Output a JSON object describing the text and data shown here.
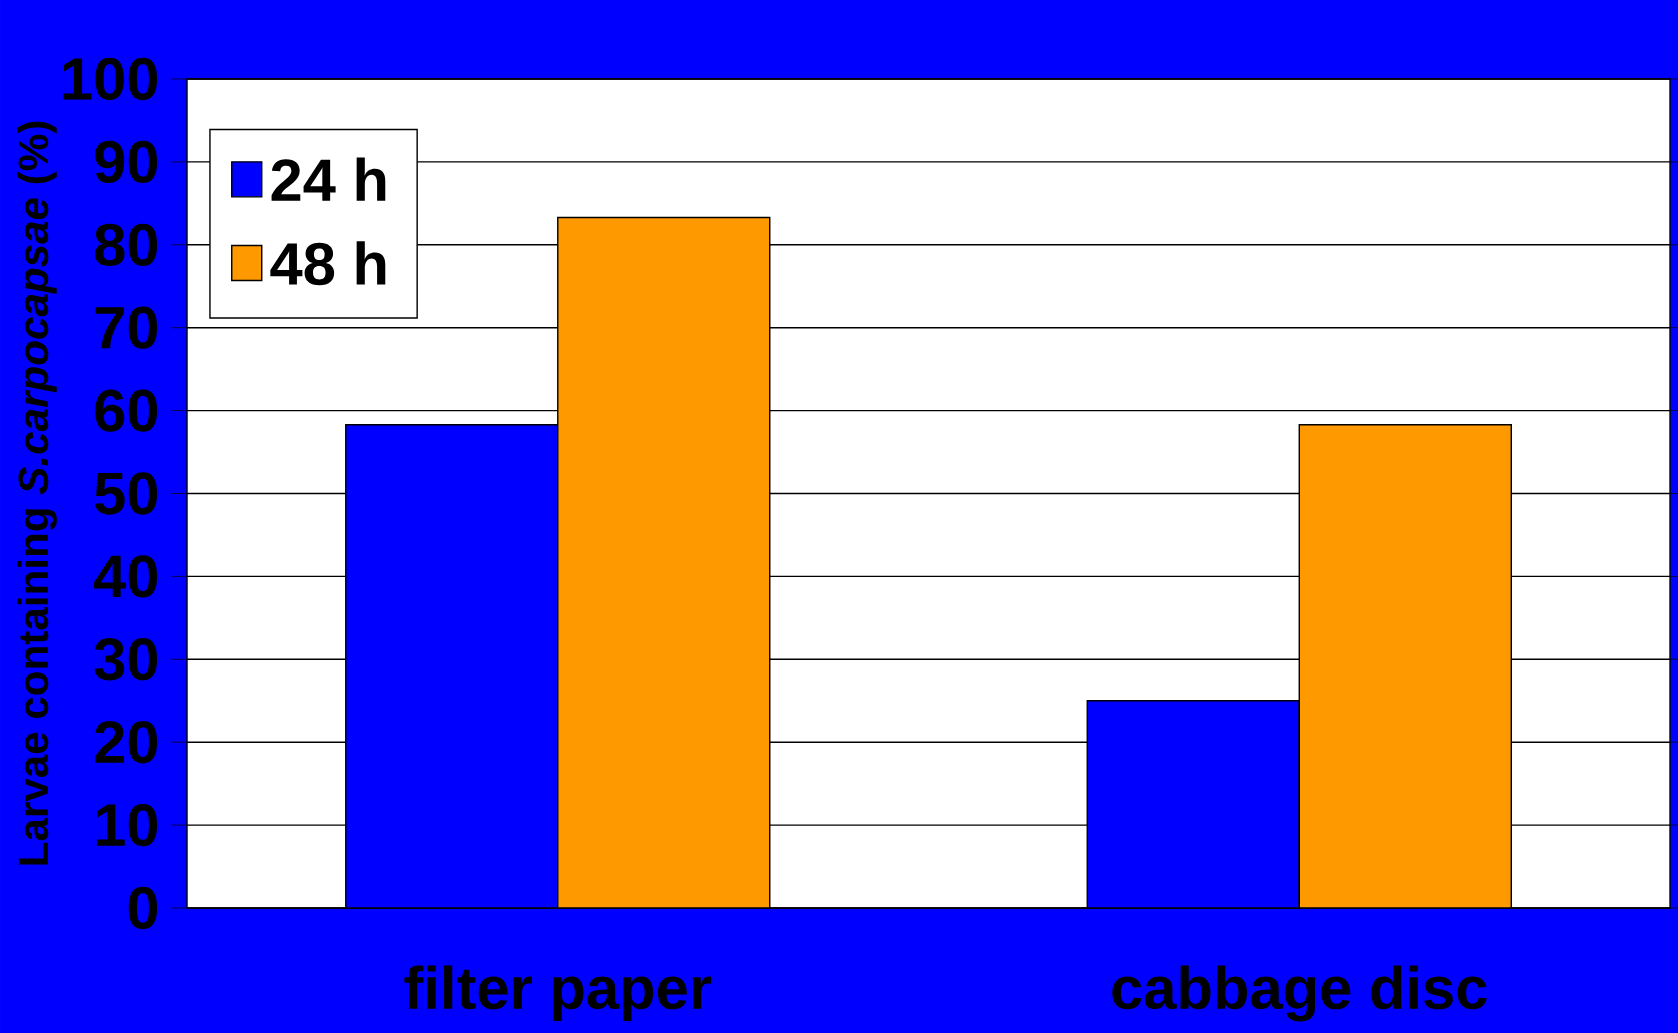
{
  "chart_data": {
    "type": "bar",
    "ylabel": "Larvae containing *S.carpocapsae* (%)",
    "categories": [
      "filter paper",
      "cabbage disc"
    ],
    "series": [
      {
        "name": "24 h",
        "color": "#0000ff",
        "values": [
          58.3,
          25
        ]
      },
      {
        "name": "48 h",
        "color": "#ff9900",
        "values": [
          83.3,
          58.3
        ]
      }
    ],
    "ylim": [
      0,
      100
    ],
    "yticks": [
      0,
      10,
      20,
      30,
      40,
      50,
      60,
      70,
      80,
      90,
      100
    ],
    "grid": "y",
    "legend": "top left"
  }
}
